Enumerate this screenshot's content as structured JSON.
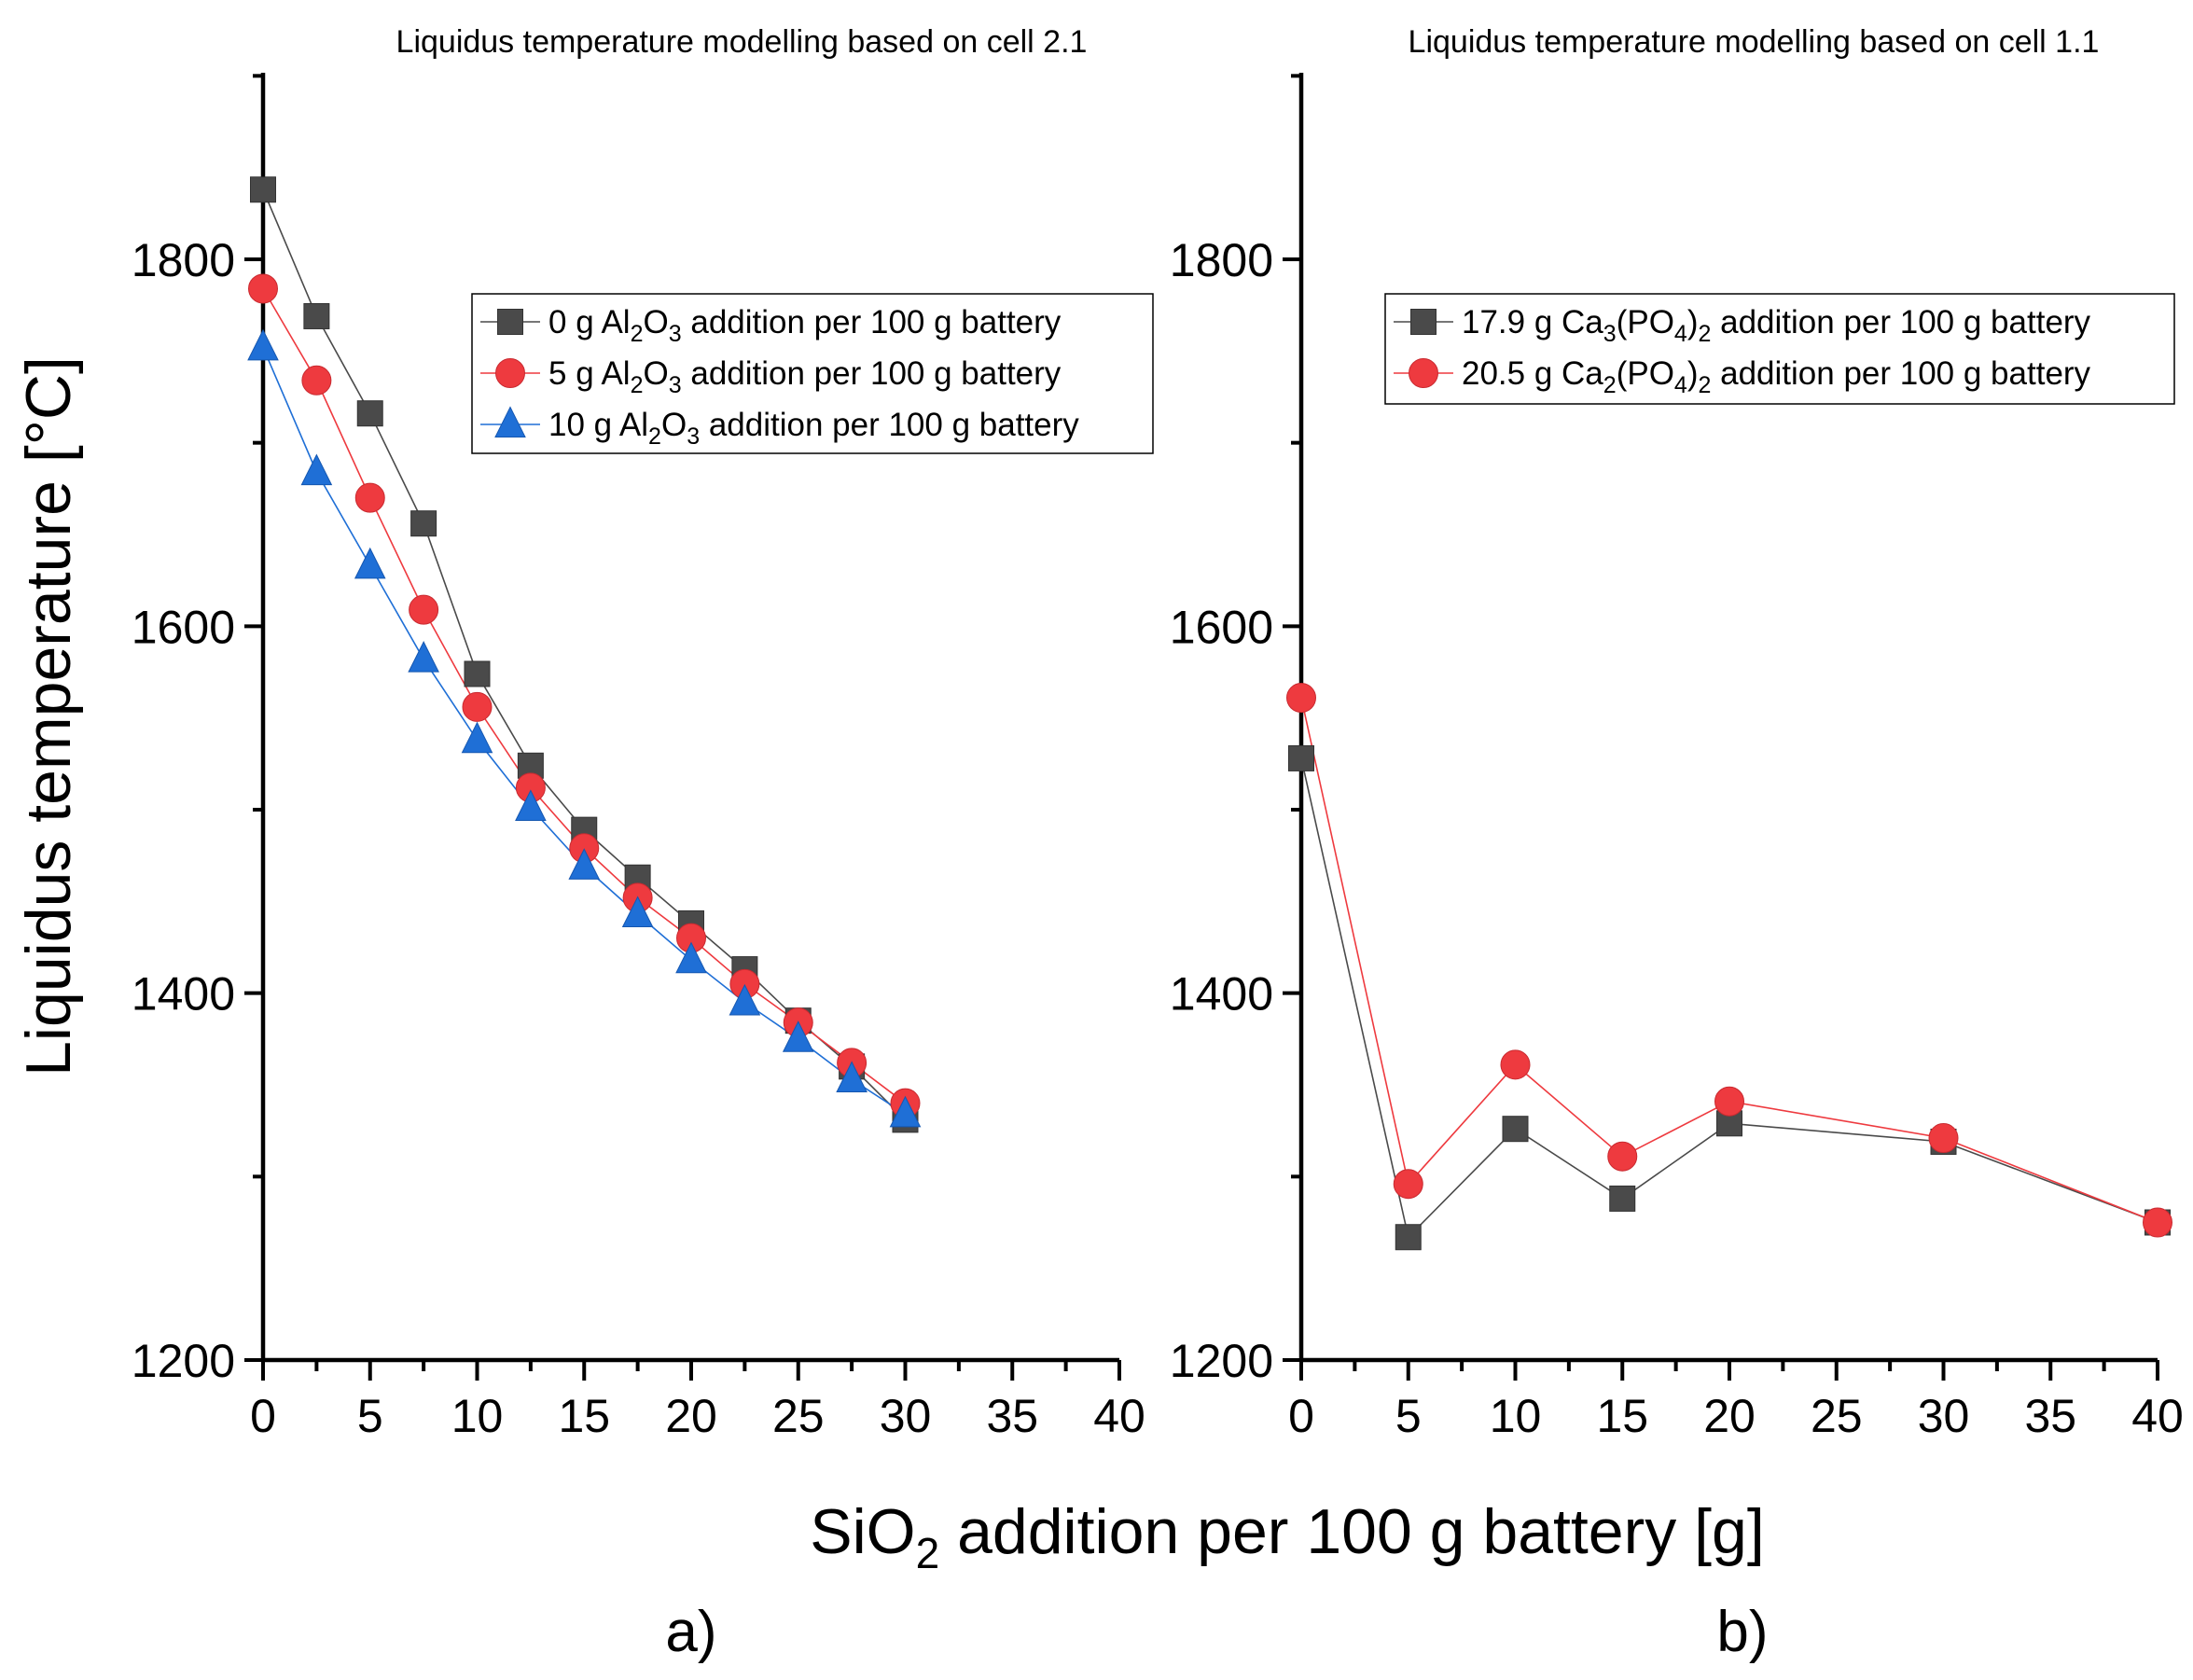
{
  "figure": {
    "ylabel": "Liquidus temperature [°C]",
    "xlabel": {
      "pre": "SiO",
      "sub": "2",
      "post": " addition per 100 g battery [g]"
    },
    "panel_labels": [
      "a)",
      "b)"
    ]
  },
  "colors": {
    "black_series": "#4a4a4a",
    "red_series": "#ee3a3f",
    "blue_series": "#1f6fd6"
  },
  "chart_data": [
    {
      "type": "line",
      "panel": "a)",
      "title": "Liquidus temperature modelling based on cell 2.1",
      "xlim": [
        0,
        40
      ],
      "ylim": [
        1200,
        1900
      ],
      "x_ticks": [
        0,
        5,
        10,
        15,
        20,
        25,
        30,
        35,
        40
      ],
      "y_ticks": [
        1200,
        1400,
        1600,
        1800
      ],
      "legend_position": "top-right",
      "series": [
        {
          "name": "0 g Al2O3 addition per 100 g battery",
          "legend": [
            {
              "t": "0 g Al"
            },
            {
              "t": "2",
              "sub": true
            },
            {
              "t": "O"
            },
            {
              "t": "3",
              "sub": true
            },
            {
              "t": " addition per 100 g battery"
            }
          ],
          "marker": "square",
          "color": "#4a4a4a",
          "x": [
            0,
            2.5,
            5,
            7.5,
            10,
            12.5,
            15,
            17.5,
            20,
            22.5,
            25,
            27.5,
            30
          ],
          "y": [
            1838,
            1769,
            1716,
            1656,
            1574,
            1524,
            1489,
            1463,
            1438,
            1413,
            1385,
            1360,
            1331
          ]
        },
        {
          "name": "5 g Al2O3 addition per 100 g battery",
          "legend": [
            {
              "t": "5 g Al"
            },
            {
              "t": "2",
              "sub": true
            },
            {
              "t": "O"
            },
            {
              "t": "3",
              "sub": true
            },
            {
              "t": " addition per 100 g battery"
            }
          ],
          "marker": "circle",
          "color": "#ee3a3f",
          "x": [
            0,
            2.5,
            5,
            7.5,
            10,
            12.5,
            15,
            17.5,
            20,
            22.5,
            25,
            27.5,
            30
          ],
          "y": [
            1784,
            1734,
            1670,
            1609,
            1556,
            1512,
            1479,
            1452,
            1430,
            1405,
            1384,
            1362,
            1340
          ]
        },
        {
          "name": "10 g Al2O3 addition per 100 g battery",
          "legend": [
            {
              "t": "10 g Al"
            },
            {
              "t": "2",
              "sub": true
            },
            {
              "t": "O"
            },
            {
              "t": "3",
              "sub": true
            },
            {
              "t": " addition per 100 g battery"
            }
          ],
          "marker": "triangle",
          "color": "#1f6fd6",
          "x": [
            0,
            2.5,
            5,
            7.5,
            10,
            12.5,
            15,
            17.5,
            20,
            22.5,
            25,
            27.5,
            30
          ],
          "y": [
            1752,
            1684,
            1633,
            1582,
            1538,
            1501,
            1469,
            1443,
            1418,
            1395,
            1375,
            1353,
            1334
          ]
        }
      ]
    },
    {
      "type": "line",
      "panel": "b)",
      "title": "Liquidus temperature modelling based on cell 1.1",
      "xlim": [
        0,
        40
      ],
      "ylim": [
        1200,
        1900
      ],
      "x_ticks": [
        0,
        5,
        10,
        15,
        20,
        25,
        30,
        35,
        40
      ],
      "y_ticks": [
        1200,
        1400,
        1600,
        1800
      ],
      "legend_position": "top-right",
      "series": [
        {
          "name": "17.9 g Ca3(PO4)2 addition per 100 g battery",
          "legend": [
            {
              "t": "17.9 g Ca"
            },
            {
              "t": "3",
              "sub": true
            },
            {
              "t": "(PO"
            },
            {
              "t": "4",
              "sub": true
            },
            {
              "t": ")"
            },
            {
              "t": "2",
              "sub": true
            },
            {
              "t": " addition per 100 g battery"
            }
          ],
          "marker": "square",
          "color": "#4a4a4a",
          "x": [
            0,
            5,
            10,
            15,
            20,
            30,
            40
          ],
          "y": [
            1528,
            1267,
            1326,
            1288,
            1329,
            1319,
            1275
          ]
        },
        {
          "name": "20.5 g Ca2(PO4)2 addition per 100 g battery",
          "legend": [
            {
              "t": "20.5 g Ca"
            },
            {
              "t": "2",
              "sub": true
            },
            {
              "t": "(PO"
            },
            {
              "t": "4",
              "sub": true
            },
            {
              "t": ")"
            },
            {
              "t": "2",
              "sub": true
            },
            {
              "t": " addition per 100 g battery"
            }
          ],
          "marker": "circle",
          "color": "#ee3a3f",
          "x": [
            0,
            5,
            10,
            15,
            20,
            30,
            40
          ],
          "y": [
            1561,
            1296,
            1361,
            1311,
            1341,
            1321,
            1275
          ]
        }
      ]
    }
  ]
}
